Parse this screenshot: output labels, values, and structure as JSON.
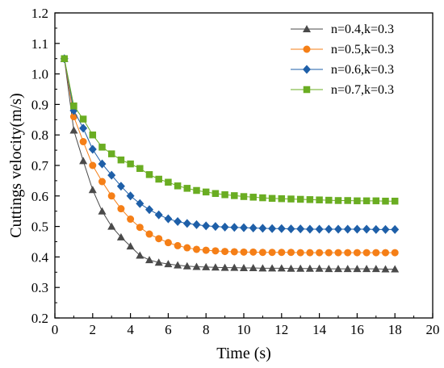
{
  "chart_data": {
    "type": "line",
    "title": "",
    "xlabel": "Time (s)",
    "ylabel": "Cuttings velocity(m/s)",
    "xlim": [
      0,
      20
    ],
    "ylim": [
      0.2,
      1.2
    ],
    "x_ticks": [
      "0",
      "2",
      "4",
      "6",
      "8",
      "10",
      "12",
      "14",
      "16",
      "18",
      "20"
    ],
    "y_ticks": [
      "0.2",
      "0.3",
      "0.4",
      "0.5",
      "0.6",
      "0.7",
      "0.8",
      "0.9",
      "1.0",
      "1.1",
      "1.2"
    ],
    "grid": false,
    "legend_position": "top-right",
    "x": [
      0.5,
      1,
      1.5,
      2,
      2.5,
      3,
      3.5,
      4,
      4.5,
      5,
      5.5,
      6,
      6.5,
      7,
      7.5,
      8,
      8.5,
      9,
      9.5,
      10,
      10.5,
      11,
      11.5,
      12,
      12.5,
      13,
      13.5,
      14,
      14.5,
      15,
      15.5,
      16,
      16.5,
      17,
      17.5,
      18
    ],
    "series": [
      {
        "name": "n=0.4,k=0.3",
        "color": "#4a4a4a",
        "marker": "triangle",
        "values": [
          1.05,
          0.815,
          0.715,
          0.62,
          0.55,
          0.5,
          0.465,
          0.435,
          0.405,
          0.39,
          0.382,
          0.377,
          0.373,
          0.37,
          0.368,
          0.367,
          0.366,
          0.365,
          0.365,
          0.364,
          0.364,
          0.363,
          0.363,
          0.363,
          0.362,
          0.362,
          0.362,
          0.362,
          0.361,
          0.361,
          0.361,
          0.361,
          0.361,
          0.361,
          0.36,
          0.36
        ]
      },
      {
        "name": "n=0.5,k=0.3",
        "color": "#f57f17",
        "marker": "circle",
        "values": [
          1.05,
          0.86,
          0.778,
          0.7,
          0.647,
          0.6,
          0.558,
          0.524,
          0.497,
          0.475,
          0.46,
          0.447,
          0.437,
          0.43,
          0.425,
          0.422,
          0.42,
          0.418,
          0.417,
          0.416,
          0.416,
          0.415,
          0.415,
          0.415,
          0.415,
          0.414,
          0.414,
          0.414,
          0.414,
          0.414,
          0.414,
          0.414,
          0.414,
          0.414,
          0.414,
          0.414
        ]
      },
      {
        "name": "n=0.6,k=0.3",
        "color": "#1e5fa8",
        "marker": "diamond",
        "values": [
          1.05,
          0.88,
          0.822,
          0.753,
          0.705,
          0.668,
          0.632,
          0.6,
          0.575,
          0.555,
          0.538,
          0.525,
          0.516,
          0.51,
          0.506,
          0.502,
          0.5,
          0.498,
          0.497,
          0.496,
          0.495,
          0.494,
          0.493,
          0.493,
          0.492,
          0.492,
          0.491,
          0.491,
          0.491,
          0.491,
          0.491,
          0.491,
          0.491,
          0.49,
          0.49,
          0.49
        ]
      },
      {
        "name": "n=0.7,k=0.3",
        "color": "#6aad22",
        "marker": "square",
        "values": [
          1.05,
          0.895,
          0.852,
          0.8,
          0.76,
          0.738,
          0.718,
          0.705,
          0.69,
          0.67,
          0.655,
          0.645,
          0.633,
          0.625,
          0.618,
          0.613,
          0.608,
          0.604,
          0.601,
          0.598,
          0.596,
          0.594,
          0.592,
          0.591,
          0.59,
          0.589,
          0.588,
          0.587,
          0.586,
          0.585,
          0.585,
          0.584,
          0.584,
          0.584,
          0.583,
          0.583
        ]
      }
    ]
  }
}
